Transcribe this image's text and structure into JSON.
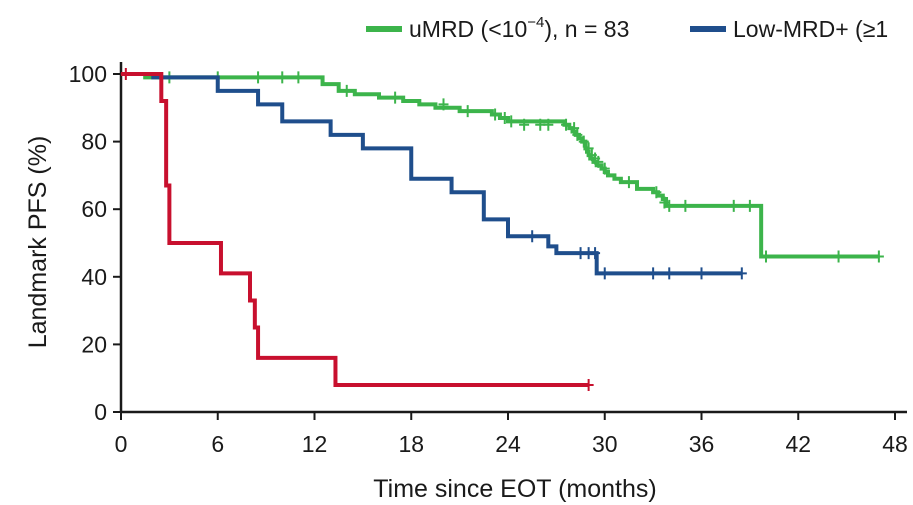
{
  "chart_data": {
    "type": "line",
    "subtype": "kaplan-meier",
    "title": "",
    "xlabel": "Time since EOT (months)",
    "ylabel": "Landmark PFS (%)",
    "xlim": [
      0,
      48
    ],
    "ylim": [
      0,
      100
    ],
    "x_ticks": [
      "0",
      "6",
      "12",
      "18",
      "24",
      "30",
      "36",
      "42",
      "48"
    ],
    "y_ticks": [
      "0",
      "20",
      "40",
      "60",
      "80",
      "100"
    ],
    "grid": false,
    "legend_position": "top-right",
    "legend": [
      {
        "label": "uMRD (<10",
        "sup": "−4",
        "suffix": "), n = 83",
        "color": "#3cb44b"
      },
      {
        "label": "Low-MRD+ (≥1",
        "sup": "",
        "suffix": "",
        "color": "#1f4e8c"
      }
    ],
    "series": [
      {
        "name": "uMRD (<10−4), n = 83",
        "color": "#3cb44b",
        "steps": [
          [
            0,
            100
          ],
          [
            1.5,
            99
          ],
          [
            12.5,
            97
          ],
          [
            13.5,
            95
          ],
          [
            14.5,
            94
          ],
          [
            16,
            93
          ],
          [
            17.5,
            92
          ],
          [
            18.5,
            91
          ],
          [
            19.5,
            90
          ],
          [
            21,
            89
          ],
          [
            23,
            88
          ],
          [
            23.5,
            87
          ],
          [
            24,
            86
          ],
          [
            27.5,
            85
          ],
          [
            27.8,
            84
          ],
          [
            28,
            83
          ],
          [
            28.2,
            82
          ],
          [
            28.4,
            81
          ],
          [
            28.6,
            80
          ],
          [
            28.8,
            78
          ],
          [
            28.9,
            77
          ],
          [
            29,
            76
          ],
          [
            29.1,
            75
          ],
          [
            29.3,
            74
          ],
          [
            29.5,
            73
          ],
          [
            29.8,
            72
          ],
          [
            30,
            71
          ],
          [
            30.2,
            70
          ],
          [
            30.6,
            69
          ],
          [
            31,
            68
          ],
          [
            32,
            66
          ],
          [
            33,
            65
          ],
          [
            33.3,
            64
          ],
          [
            33.6,
            63
          ],
          [
            33.8,
            61
          ],
          [
            39.7,
            61
          ],
          [
            39.7,
            46
          ],
          [
            47,
            46
          ]
        ],
        "censors": [
          [
            3,
            99
          ],
          [
            6,
            99
          ],
          [
            8.5,
            99
          ],
          [
            10,
            99
          ],
          [
            11,
            99
          ],
          [
            14,
            95
          ],
          [
            17,
            93
          ],
          [
            20,
            91
          ],
          [
            21.5,
            89
          ],
          [
            23.2,
            88
          ],
          [
            23.8,
            87
          ],
          [
            24.2,
            86
          ],
          [
            25,
            85
          ],
          [
            26,
            85
          ],
          [
            26.5,
            85
          ],
          [
            27.6,
            85
          ],
          [
            28.1,
            84
          ],
          [
            28.3,
            82
          ],
          [
            28.7,
            80
          ],
          [
            29,
            78
          ],
          [
            29.2,
            76
          ],
          [
            29.4,
            75
          ],
          [
            29.6,
            74
          ],
          [
            30,
            72
          ],
          [
            31.5,
            68
          ],
          [
            33.2,
            65
          ],
          [
            33.7,
            62
          ],
          [
            34,
            61
          ],
          [
            35,
            61
          ],
          [
            38,
            61
          ],
          [
            39,
            61
          ],
          [
            40,
            46
          ],
          [
            44.5,
            46
          ],
          [
            47,
            46
          ]
        ]
      },
      {
        "name": "Low-MRD+ (≥1",
        "color": "#1f4e8c",
        "steps": [
          [
            0,
            100
          ],
          [
            2,
            99
          ],
          [
            6,
            95
          ],
          [
            8.5,
            91
          ],
          [
            10,
            86
          ],
          [
            13,
            82
          ],
          [
            15,
            78
          ],
          [
            18,
            73
          ],
          [
            18,
            69
          ],
          [
            20.5,
            65
          ],
          [
            22.5,
            57
          ],
          [
            24,
            52
          ],
          [
            26.5,
            49
          ],
          [
            27,
            47
          ],
          [
            29.5,
            41
          ],
          [
            38.5,
            41
          ]
        ],
        "censors": [
          [
            25.5,
            52
          ],
          [
            28.5,
            47
          ],
          [
            29,
            47
          ],
          [
            29.4,
            47
          ],
          [
            30,
            41
          ],
          [
            33,
            41
          ],
          [
            34,
            41
          ],
          [
            36,
            41
          ],
          [
            38.5,
            41
          ]
        ]
      },
      {
        "name": "",
        "color": "#c8102e",
        "steps": [
          [
            0,
            100
          ],
          [
            2.5,
            92
          ],
          [
            2.8,
            67
          ],
          [
            3,
            50
          ],
          [
            6.2,
            41
          ],
          [
            8,
            33
          ],
          [
            8.3,
            25
          ],
          [
            8.5,
            16
          ],
          [
            13.3,
            8
          ],
          [
            29,
            8
          ]
        ],
        "censors": [
          [
            0.3,
            100
          ],
          [
            29,
            8
          ]
        ]
      }
    ]
  }
}
